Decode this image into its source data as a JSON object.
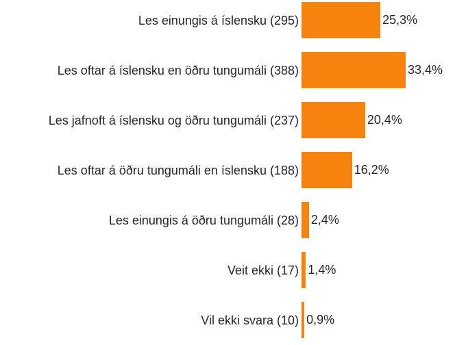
{
  "chart_data": {
    "type": "bar",
    "orientation": "horizontal",
    "categories": [
      "Les einungis á íslensku (295)",
      "Les oftar á íslensku en öðru tungumáli (388)",
      "Les jafnoft á íslensku og öðru tungumáli (237)",
      "Les oftar á öðru tungumáli en íslensku (188)",
      "Les einungis á öðru tungumáli (28)",
      "Veit ekki (17)",
      "Vil ekki svara (10)"
    ],
    "values": [
      25.3,
      33.4,
      20.4,
      16.2,
      2.4,
      1.4,
      0.9
    ],
    "value_labels": [
      "25,3%",
      "33,4%",
      "20,4%",
      "16,2%",
      "2,4%",
      "1,4%",
      "0,9%"
    ],
    "color": "#f7830f"
  }
}
